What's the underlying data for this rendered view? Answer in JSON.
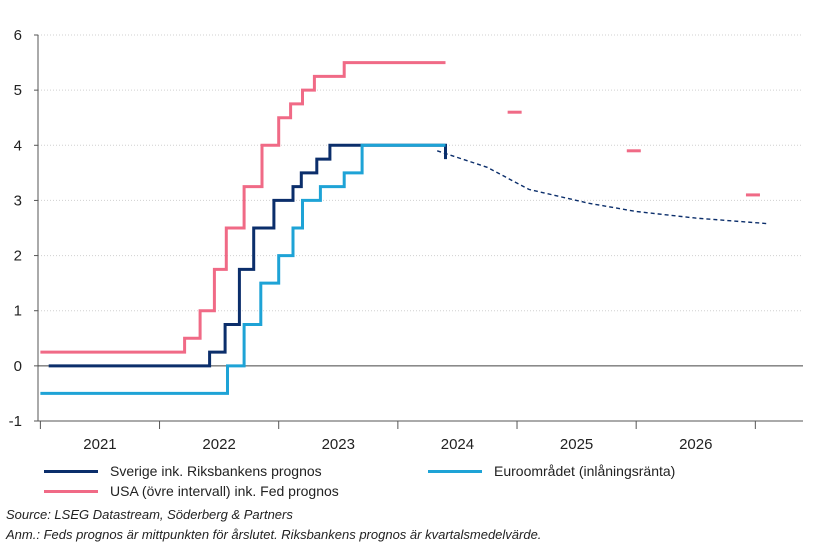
{
  "chart_data": {
    "type": "line",
    "x_unit": "year",
    "xlim": [
      2020.98,
      2027.4
    ],
    "ylim": [
      -1,
      6
    ],
    "yticks": [
      -1,
      0,
      1,
      2,
      3,
      4,
      5,
      6
    ],
    "year_labels": [
      "2021",
      "2022",
      "2023",
      "2024",
      "2025",
      "2026"
    ],
    "grid": "horizontal dotted",
    "colors": {
      "sweden": "#0b2e6b",
      "euro": "#1ea3d6",
      "usa": "#f06a86"
    },
    "series": [
      {
        "key": "sweden",
        "name": "Sverige ink. Riksbankens prognos",
        "x": [
          2021.07,
          2022.34,
          2022.42,
          2022.55,
          2022.67,
          2022.69,
          2022.79,
          2022.82,
          2022.87,
          2022.9,
          2022.96,
          2023.05,
          2023.12,
          2023.19,
          2023.22,
          2023.32,
          2023.38,
          2023.43,
          2023.46,
          2023.6,
          2023.64,
          2023.68,
          2024.32,
          2024.4
        ],
        "y": [
          0,
          0,
          0.25,
          0.75,
          1.75,
          1.75,
          2.5,
          2.5,
          2.5,
          2.5,
          3.0,
          3.0,
          3.25,
          3.5,
          3.5,
          3.75,
          3.75,
          4.0,
          4.0,
          4.0,
          4.0,
          4.0,
          4.0,
          3.75
        ]
      },
      {
        "key": "sweden_forecast",
        "name": "",
        "dashed": true,
        "x": [
          2024.33,
          2024.75,
          2025.1,
          2025.6,
          2026.0,
          2026.5,
          2027.1
        ],
        "y": [
          3.9,
          3.6,
          3.2,
          2.95,
          2.8,
          2.68,
          2.58
        ]
      },
      {
        "key": "euro",
        "name": "Euroområdet (inlåningsränta)",
        "x": [
          2021.0,
          2022.57,
          2022.71,
          2022.85,
          2023.0,
          2023.12,
          2023.2,
          2023.35,
          2023.55,
          2023.7,
          2024.4
        ],
        "y": [
          -0.5,
          0,
          0.75,
          1.5,
          2.0,
          2.5,
          3.0,
          3.25,
          3.5,
          4.0,
          4.0
        ]
      },
      {
        "key": "usa",
        "name": "USA (övre intervall) ink. Fed prognos",
        "x": [
          2021.0,
          2022.21,
          2022.34,
          2022.46,
          2022.56,
          2022.71,
          2022.86,
          2023.0,
          2023.1,
          2023.2,
          2023.3,
          2023.55,
          2024.4
        ],
        "y": [
          0.25,
          0.5,
          1.0,
          1.75,
          2.5,
          3.25,
          4.0,
          4.5,
          4.75,
          5.0,
          5.25,
          5.5,
          5.5
        ]
      }
    ],
    "fed_projections": [
      {
        "x": 2024.98,
        "y": 4.6
      },
      {
        "x": 2025.98,
        "y": 3.9
      },
      {
        "x": 2026.98,
        "y": 3.1
      }
    ]
  },
  "legend": {
    "sweden": "Sverige ink. Riksbankens prognos",
    "euro": "Euroområdet (inlåningsränta)",
    "usa": "USA (övre intervall) ink. Fed prognos"
  },
  "source": "Source: LSEG Datastream, Söderberg & Partners",
  "note": "Anm.: Feds prognos är mittpunkten för årslutet. Riksbankens prognos är kvartalsmedelvärde."
}
